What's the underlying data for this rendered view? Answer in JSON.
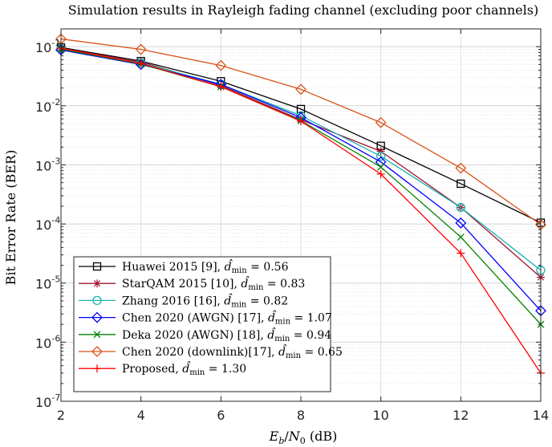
{
  "chart_data": {
    "type": "line",
    "title": "Simulation results in Rayleigh fading channel (excluding poor channels)",
    "xlabel": "E_b/N_0 (dB)",
    "ylabel": "Bit Error Rate (BER)",
    "xlim": [
      2,
      14
    ],
    "ylim": [
      1e-07,
      0.2
    ],
    "yscale": "log",
    "grid": true,
    "legend_position": "bottom-left",
    "x_ticks": [
      "2",
      "4",
      "6",
      "8",
      "10",
      "12",
      "14"
    ],
    "y_ticks": [
      {
        "base": "10",
        "exp": "-1"
      },
      {
        "base": "10",
        "exp": "-2"
      },
      {
        "base": "10",
        "exp": "-3"
      },
      {
        "base": "10",
        "exp": "-4"
      },
      {
        "base": "10",
        "exp": "-5"
      },
      {
        "base": "10",
        "exp": "-6"
      },
      {
        "base": "10",
        "exp": "-7"
      }
    ],
    "x": [
      2,
      4,
      6,
      8,
      10,
      12,
      14
    ],
    "series": [
      {
        "name": "Huawei 2015 [9], d̂min = 0.56",
        "legend_main": "Huawei 2015 [9], ",
        "legend_value": "0.56",
        "color": "#000000",
        "marker": "square",
        "values": [
          0.097,
          0.057,
          0.026,
          0.0088,
          0.0021,
          0.00048,
          0.000105
        ]
      },
      {
        "name": "StarQAM 2015 [10], d̂min = 0.83",
        "legend_main": "StarQAM 2015 [10], ",
        "legend_value": "0.83",
        "color": "#a2142f",
        "marker": "star",
        "values": [
          0.094,
          0.055,
          0.022,
          0.0058,
          0.0017,
          0.00019,
          1.25e-05
        ]
      },
      {
        "name": "Zhang 2016 [16], d̂min = 0.82",
        "legend_main": "Zhang 2016 [16], ",
        "legend_value": "0.82",
        "color": "#1ab2b2",
        "marker": "circle",
        "values": [
          0.092,
          0.053,
          0.023,
          0.0068,
          0.0014,
          0.00019,
          1.65e-05
        ]
      },
      {
        "name": "Chen 2020 (AWGN) [17], d̂min = 1.07",
        "legend_main": "Chen 2020 (AWGN) [17], ",
        "legend_value": "1.07",
        "color": "#0000ff",
        "marker": "diamond",
        "values": [
          0.088,
          0.05,
          0.023,
          0.0063,
          0.00112,
          0.000104,
          3.4e-06
        ]
      },
      {
        "name": "Deka 2020 (AWGN) [18], d̂min = 0.94",
        "legend_main": "Deka 2020 (AWGN) [18], ",
        "legend_value": "0.94",
        "color": "#008000",
        "marker": "x",
        "values": [
          0.091,
          0.051,
          0.021,
          0.0056,
          0.00092,
          6e-05,
          2e-06
        ]
      },
      {
        "name": "Chen 2020 (downlink)[17], d̂min = 0.65",
        "legend_main": "Chen 2020 (downlink)[17], ",
        "legend_value": "0.65",
        "color": "#d95319",
        "marker": "diamond",
        "values": [
          0.135,
          0.09,
          0.048,
          0.019,
          0.0052,
          0.00088,
          9.75e-05
        ]
      },
      {
        "name": "Proposed, d̂min = 1.30",
        "legend_main": "Proposed, ",
        "legend_value": "1.30",
        "color": "#ff0000",
        "marker": "plus",
        "values": [
          0.094,
          0.052,
          0.021,
          0.0055,
          0.0007,
          3.2e-05,
          3e-07
        ]
      }
    ]
  }
}
